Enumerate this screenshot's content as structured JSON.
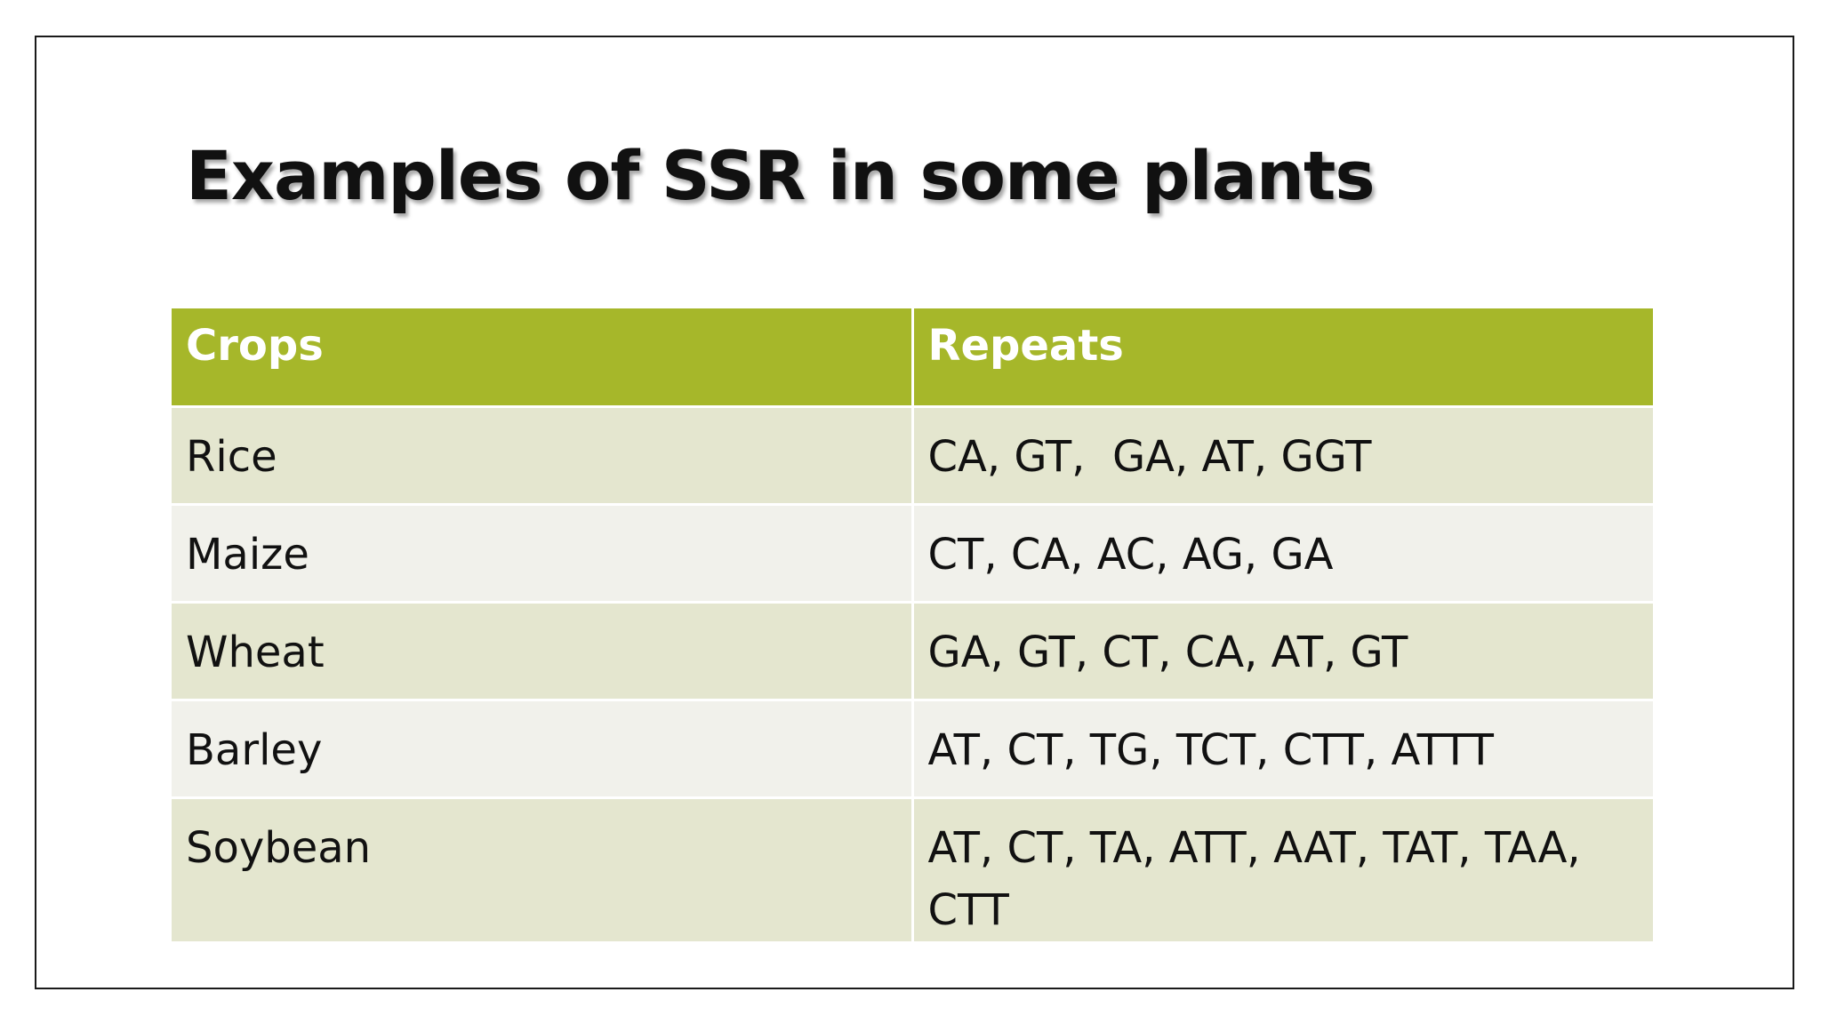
{
  "slide": {
    "title": "Examples of SSR in some plants"
  },
  "table": {
    "headers": {
      "crops": "Crops",
      "repeats": "Repeats"
    },
    "rows": [
      {
        "crop": "Rice",
        "repeats": "CA, GT,  GA, AT, GGT"
      },
      {
        "crop": "Maize",
        "repeats": "CT, CA, AC, AG, GA"
      },
      {
        "crop": "Wheat",
        "repeats": "GA, GT, CT, CA, AT, GT"
      },
      {
        "crop": "Barley",
        "repeats": "AT, CT, TG, TCT, CTT, ATTT"
      },
      {
        "crop": "Soybean",
        "repeats": "AT, CT, TA, ATT, AAT, TAT, TAA, CTT"
      }
    ]
  },
  "colors": {
    "header": "#a6b72a",
    "row_odd": "#e4e6cf",
    "row_even": "#f1f1eb"
  }
}
